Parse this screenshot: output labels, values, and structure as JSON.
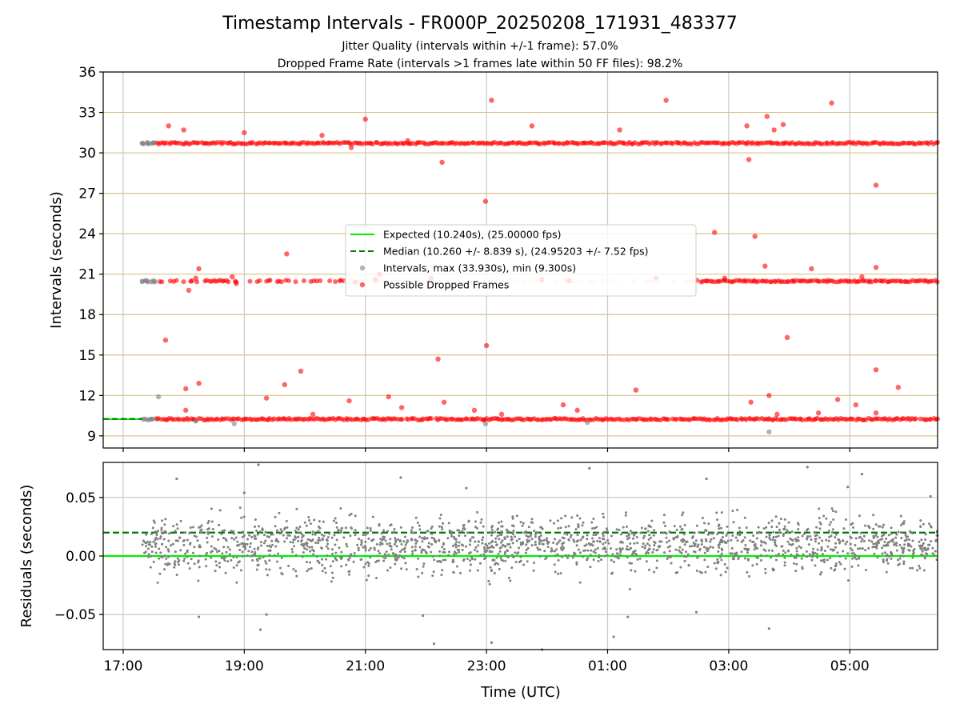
{
  "chart_data": [
    {
      "panel": "intervals",
      "type": "scatter",
      "title": "Timestamp Intervals - FR000P_20250208_171931_483377",
      "subtitles": [
        "Jitter Quality (intervals within +/-1 frame): 57.0%",
        "Dropped Frame Rate (intervals >1 frames late within 50 FF files): 98.2%"
      ],
      "xlabel": "",
      "ylabel": "Intervals (seconds)",
      "x_start": "17:19",
      "x_end": "06:27",
      "xlim_hours": [
        16.67,
        30.45
      ],
      "ylim": [
        8.1,
        36
      ],
      "yticks": [
        9,
        12,
        15,
        18,
        21,
        24,
        27,
        30,
        33,
        36
      ],
      "xtick_labels": [
        "17:00",
        "19:00",
        "21:00",
        "23:00",
        "01:00",
        "03:00",
        "05:00"
      ],
      "grid": true,
      "legend_position": "center",
      "legend": [
        {
          "label": "Expected (10.240s), (25.00000 fps)",
          "style": "solid-line",
          "color": "#00ee00"
        },
        {
          "label": "Median (10.260 +/- 8.839 s), (24.95203 +/- 7.52 fps)",
          "style": "dashed-line",
          "color": "#007700"
        },
        {
          "label": "Intervals, max (33.930s), min (9.300s)",
          "style": "point",
          "color": "#808080"
        },
        {
          "label": "Possible Dropped Frames",
          "style": "point",
          "color": "#ff0000"
        }
      ],
      "expected_interval": 10.24,
      "median_interval": 10.26,
      "max_interval": 33.93,
      "min_interval": 9.3,
      "bands": [
        {
          "name": "10.24 s band (1 file)",
          "y": 10.24,
          "x_range": [
            "17:19",
            "06:27"
          ],
          "series": "Possible Dropped Frames"
        },
        {
          "name": "20.48 s band (2 files)",
          "y": 20.48,
          "x_range": [
            "17:19",
            "06:27"
          ],
          "series": "Possible Dropped Frames"
        },
        {
          "name": "30.72 s band (3 files)",
          "y": 30.72,
          "x_range": [
            "17:19",
            "06:27"
          ],
          "series": "Possible Dropped Frames"
        }
      ],
      "series": [
        {
          "name": "Possible Dropped Frames",
          "points": [
            [
              "17:42",
              16.1
            ],
            [
              "17:45",
              32.0
            ],
            [
              "18:00",
              31.7
            ],
            [
              "18:02",
              12.5
            ],
            [
              "18:05",
              19.8
            ],
            [
              "18:08",
              20.5
            ],
            [
              "18:12",
              20.7
            ],
            [
              "18:15",
              21.4
            ],
            [
              "18:15",
              12.9
            ],
            [
              "18:02",
              10.9
            ],
            [
              "18:48",
              20.8
            ],
            [
              "18:52",
              20.3
            ],
            [
              "19:00",
              31.5
            ],
            [
              "19:22",
              11.8
            ],
            [
              "19:42",
              22.5
            ],
            [
              "19:40",
              12.8
            ],
            [
              "19:56",
              13.8
            ],
            [
              "20:08",
              10.6
            ],
            [
              "20:17",
              31.3
            ],
            [
              "20:44",
              11.6
            ],
            [
              "20:46",
              30.4
            ],
            [
              "21:00",
              32.5
            ],
            [
              "20:50",
              20.4
            ],
            [
              "21:10",
              20.6
            ],
            [
              "21:14",
              21.0
            ],
            [
              "21:42",
              30.9
            ],
            [
              "21:23",
              11.9
            ],
            [
              "21:36",
              11.1
            ],
            [
              "22:05",
              20.7
            ],
            [
              "22:12",
              14.7
            ],
            [
              "22:16",
              29.3
            ],
            [
              "22:18",
              11.5
            ],
            [
              "22:48",
              10.9
            ],
            [
              "22:59",
              26.4
            ],
            [
              "23:00",
              15.7
            ],
            [
              "22:58",
              10.2
            ],
            [
              "23:05",
              33.9
            ],
            [
              "23:15",
              10.6
            ],
            [
              "23:45",
              32.0
            ],
            [
              "23:55",
              20.6
            ],
            [
              "24:16",
              11.3
            ],
            [
              "24:22",
              20.5
            ],
            [
              "24:30",
              10.9
            ],
            [
              "25:12",
              31.7
            ],
            [
              "25:28",
              12.4
            ],
            [
              "25:48",
              20.7
            ],
            [
              "25:58",
              33.9
            ],
            [
              "26:46",
              24.1
            ],
            [
              "26:56",
              20.7
            ],
            [
              "27:18",
              32.0
            ],
            [
              "27:20",
              29.5
            ],
            [
              "27:22",
              11.5
            ],
            [
              "27:26",
              23.8
            ],
            [
              "27:36",
              21.6
            ],
            [
              "27:38",
              32.7
            ],
            [
              "27:40",
              12.0
            ],
            [
              "27:45",
              31.7
            ],
            [
              "27:48",
              10.6
            ],
            [
              "27:54",
              32.1
            ],
            [
              "27:58",
              16.3
            ],
            [
              "28:22",
              21.4
            ],
            [
              "28:29",
              10.7
            ],
            [
              "28:42",
              33.7
            ],
            [
              "28:48",
              11.7
            ],
            [
              "29:06",
              11.3
            ],
            [
              "29:12",
              20.8
            ],
            [
              "29:26",
              27.6
            ],
            [
              "29:26",
              21.5
            ],
            [
              "29:26",
              13.9
            ],
            [
              "29:26",
              10.7
            ],
            [
              "29:48",
              12.6
            ]
          ],
          "color": "#ff0000"
        },
        {
          "name": "Intervals",
          "points": [
            [
              "17:19",
              30.72
            ],
            [
              "17:24",
              30.72
            ],
            [
              "17:30",
              30.72
            ],
            [
              "17:19",
              20.48
            ],
            [
              "17:24",
              20.48
            ],
            [
              "17:31",
              20.48
            ],
            [
              "17:28",
              10.24
            ],
            [
              "17:35",
              11.9
            ],
            [
              "18:12",
              10.1
            ],
            [
              "18:50",
              9.9
            ],
            [
              "22:59",
              9.9
            ],
            [
              "24:40",
              10.0
            ],
            [
              "27:40",
              9.3
            ]
          ],
          "color": "#808080"
        }
      ]
    },
    {
      "panel": "residuals",
      "type": "scatter",
      "xlabel": "Time (UTC)",
      "ylabel": "Residuals (seconds)",
      "xlim_hours": [
        16.67,
        30.45
      ],
      "ylim": [
        -0.08,
        0.08
      ],
      "yticks": [
        -0.05,
        0.0,
        0.05
      ],
      "ytick_labels": [
        "−0.05",
        "0.00",
        "0.05"
      ],
      "xtick_labels": [
        "17:00",
        "19:00",
        "21:00",
        "23:00",
        "01:00",
        "03:00",
        "05:00"
      ],
      "grid": true,
      "reference_lines": [
        {
          "name": "Expected",
          "y": 0.0,
          "color": "#00ee00",
          "style": "solid"
        },
        {
          "name": "Median",
          "y": 0.02,
          "color": "#007700",
          "style": "dashed"
        }
      ],
      "series": [
        {
          "name": "Residuals",
          "x_range": [
            "17:19",
            "06:27"
          ],
          "typical_range": [
            -0.04,
            0.05
          ],
          "center": 0.01,
          "count_approx": 1800,
          "extreme_points": [
            [
              "17:53",
              0.066
            ],
            [
              "18:15",
              -0.052
            ],
            [
              "19:00",
              0.054
            ],
            [
              "19:14",
              0.078
            ],
            [
              "19:22",
              -0.05
            ],
            [
              "19:16",
              -0.063
            ],
            [
              "21:35",
              0.067
            ],
            [
              "21:57",
              -0.051
            ],
            [
              "22:08",
              -0.075
            ],
            [
              "22:40",
              0.058
            ],
            [
              "23:05",
              -0.074
            ],
            [
              "23:55",
              -0.08
            ],
            [
              "24:42",
              0.075
            ],
            [
              "25:06",
              -0.069
            ],
            [
              "25:20",
              -0.052
            ],
            [
              "26:38",
              0.066
            ],
            [
              "26:28",
              -0.048
            ],
            [
              "27:40",
              -0.062
            ],
            [
              "28:18",
              0.076
            ],
            [
              "28:58",
              0.059
            ],
            [
              "29:12",
              0.07
            ],
            [
              "30:20",
              0.051
            ]
          ],
          "color": "#808080"
        }
      ]
    }
  ]
}
